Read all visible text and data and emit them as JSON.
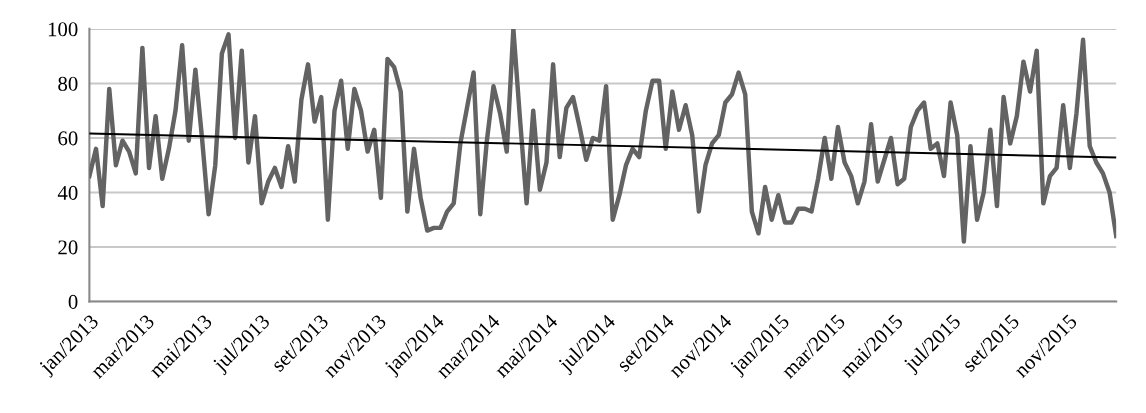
{
  "chart_data": {
    "type": "line",
    "x": [
      "2013-01-01",
      "2013-01-08",
      "2013-01-15",
      "2013-01-22",
      "2013-01-29",
      "2013-02-05",
      "2013-02-12",
      "2013-02-19",
      "2013-02-26",
      "2013-03-05",
      "2013-03-12",
      "2013-03-19",
      "2013-03-26",
      "2013-04-02",
      "2013-04-09",
      "2013-04-16",
      "2013-04-23",
      "2013-04-30",
      "2013-05-07",
      "2013-05-14",
      "2013-05-21",
      "2013-05-28",
      "2013-06-04",
      "2013-06-11",
      "2013-06-18",
      "2013-06-25",
      "2013-07-02",
      "2013-07-09",
      "2013-07-16",
      "2013-07-23",
      "2013-07-30",
      "2013-08-06",
      "2013-08-13",
      "2013-08-20",
      "2013-08-27",
      "2013-09-03",
      "2013-09-10",
      "2013-09-17",
      "2013-09-24",
      "2013-10-01",
      "2013-10-08",
      "2013-10-15",
      "2013-10-22",
      "2013-10-29",
      "2013-11-05",
      "2013-11-12",
      "2013-11-19",
      "2013-11-26",
      "2013-12-03",
      "2013-12-10",
      "2013-12-17",
      "2013-12-24",
      "2013-12-31",
      "2014-01-07",
      "2014-01-14",
      "2014-01-21",
      "2014-01-28",
      "2014-02-04",
      "2014-02-11",
      "2014-02-18",
      "2014-02-25",
      "2014-03-04",
      "2014-03-11",
      "2014-03-18",
      "2014-03-25",
      "2014-04-01",
      "2014-04-08",
      "2014-04-15",
      "2014-04-22",
      "2014-04-29",
      "2014-05-06",
      "2014-05-13",
      "2014-05-20",
      "2014-05-27",
      "2014-06-03",
      "2014-06-10",
      "2014-06-17",
      "2014-06-24",
      "2014-07-01",
      "2014-07-08",
      "2014-07-15",
      "2014-07-22",
      "2014-07-29",
      "2014-08-05",
      "2014-08-12",
      "2014-08-19",
      "2014-08-26",
      "2014-09-02",
      "2014-09-09",
      "2014-09-16",
      "2014-09-23",
      "2014-09-30",
      "2014-10-07",
      "2014-10-14",
      "2014-10-21",
      "2014-10-28",
      "2014-11-04",
      "2014-11-11",
      "2014-11-18",
      "2014-11-25",
      "2014-12-02",
      "2014-12-09",
      "2014-12-16",
      "2014-12-23",
      "2014-12-30",
      "2015-01-06",
      "2015-01-13",
      "2015-01-20",
      "2015-01-27",
      "2015-02-03",
      "2015-02-10",
      "2015-02-17",
      "2015-02-24",
      "2015-03-03",
      "2015-03-10",
      "2015-03-17",
      "2015-03-24",
      "2015-03-31",
      "2015-04-07",
      "2015-04-14",
      "2015-04-21",
      "2015-04-28",
      "2015-05-05",
      "2015-05-12",
      "2015-05-19",
      "2015-05-26",
      "2015-06-02",
      "2015-06-09",
      "2015-06-16",
      "2015-06-23",
      "2015-06-30",
      "2015-07-07",
      "2015-07-14",
      "2015-07-21",
      "2015-07-28",
      "2015-08-04",
      "2015-08-11",
      "2015-08-18",
      "2015-08-25",
      "2015-09-01",
      "2015-09-08",
      "2015-09-15",
      "2015-09-22",
      "2015-09-29",
      "2015-10-06",
      "2015-10-13",
      "2015-10-20",
      "2015-10-27",
      "2015-11-03",
      "2015-11-10",
      "2015-11-17",
      "2015-11-24",
      "2015-12-01",
      "2015-12-08",
      "2015-12-15",
      "2015-12-22"
    ],
    "series": [
      {
        "color": "#636363",
        "values": [
          46,
          56,
          35,
          78,
          50,
          59,
          55,
          47,
          93,
          49,
          68,
          45,
          56,
          70,
          94,
          59,
          85,
          60,
          32,
          50,
          91,
          98,
          60,
          92,
          51,
          68,
          36,
          44,
          49,
          42,
          57,
          44,
          74,
          87,
          66,
          75,
          30,
          70,
          81,
          56,
          78,
          70,
          55,
          63,
          38,
          89,
          86,
          77,
          33,
          56,
          38,
          26,
          27,
          27,
          33,
          36,
          58,
          71,
          84,
          32,
          59,
          79,
          69,
          55,
          100,
          67,
          36,
          70,
          41,
          51,
          87,
          53,
          71,
          75,
          64,
          52,
          60,
          59,
          79,
          30,
          39,
          50,
          56,
          53,
          70,
          81,
          81,
          56,
          77,
          63,
          72,
          61,
          33,
          50,
          58,
          61,
          73,
          76,
          84,
          76,
          33,
          25,
          42,
          30,
          39,
          29,
          29,
          34,
          34,
          33,
          45,
          60,
          45,
          64,
          51,
          46,
          36,
          44,
          65,
          44,
          52,
          60,
          43,
          45,
          64,
          70,
          73,
          56,
          58,
          46,
          73,
          61,
          22,
          57,
          30,
          40,
          63,
          35,
          75,
          58,
          68,
          88,
          77,
          92,
          36,
          46,
          49,
          72,
          49,
          69,
          96,
          57,
          51,
          47,
          40,
          24
        ]
      },
      {
        "type": "line",
        "color": "#000000",
        "x": [
          "2013-01-01",
          "2015-12-22"
        ],
        "values": [
          61.6,
          52.8
        ]
      }
    ],
    "xlim": [
      "2013-01-01",
      "2015-12-22"
    ],
    "xticks": [
      {
        "value": "2013-01-01",
        "label": "jan/2013"
      },
      {
        "value": "2013-03-01",
        "label": "mar/2013"
      },
      {
        "value": "2013-05-01",
        "label": "mai/2013"
      },
      {
        "value": "2013-07-01",
        "label": "jul/2013"
      },
      {
        "value": "2013-09-01",
        "label": "set/2013"
      },
      {
        "value": "2013-11-01",
        "label": "nov/2013"
      },
      {
        "value": "2014-01-01",
        "label": "jan/2014"
      },
      {
        "value": "2014-03-01",
        "label": "mar/2014"
      },
      {
        "value": "2014-05-01",
        "label": "mai/2014"
      },
      {
        "value": "2014-07-01",
        "label": "jul/2014"
      },
      {
        "value": "2014-09-01",
        "label": "set/2014"
      },
      {
        "value": "2014-11-01",
        "label": "nov/2014"
      },
      {
        "value": "2015-01-01",
        "label": "jan/2015"
      },
      {
        "value": "2015-03-01",
        "label": "mar/2015"
      },
      {
        "value": "2015-05-01",
        "label": "mai/2015"
      },
      {
        "value": "2015-07-01",
        "label": "jul/2015"
      },
      {
        "value": "2015-09-01",
        "label": "set/2015"
      },
      {
        "value": "2015-11-01",
        "label": "nov/2015"
      }
    ],
    "ylim": [
      0,
      100
    ],
    "yticks": [
      0,
      20,
      40,
      60,
      80,
      100
    ],
    "grid": "y"
  }
}
